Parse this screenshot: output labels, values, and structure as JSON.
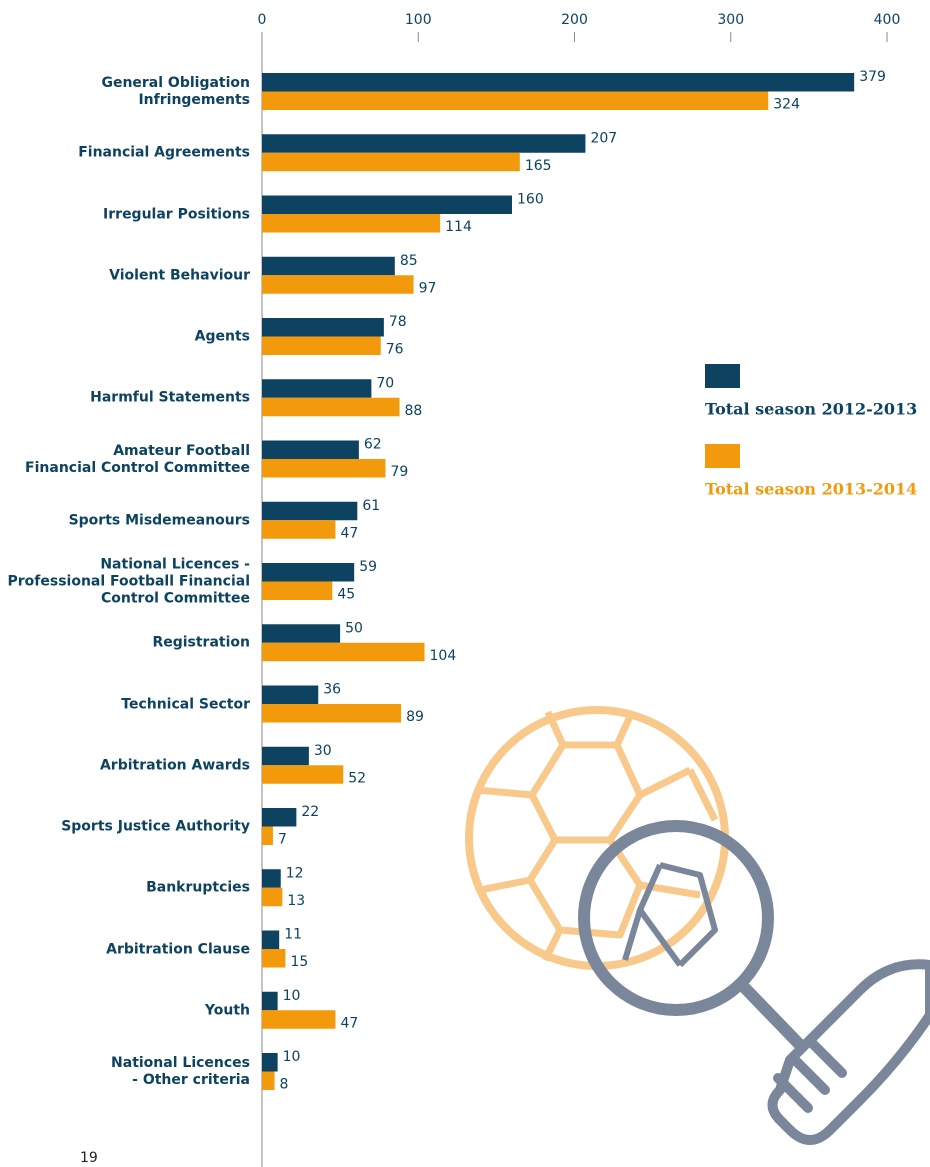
{
  "chart_data": {
    "type": "bar",
    "orientation": "horizontal",
    "categories": [
      "General Obligation\nInfringements",
      "Financial Agreements",
      "Irregular Positions",
      "Violent Behaviour",
      "Agents",
      "Harmful Statements",
      "Amateur Football\nFinancial Control Committee",
      "Sports Misdemeanours",
      "National Licences -\nProfessional Football Financial\nControl Committee",
      "Registration",
      "Technical Sector",
      "Arbitration Awards",
      "Sports Justice Authority",
      "Bankruptcies",
      "Arbitration Clause",
      "Youth",
      "National Licences\n- Other criteria"
    ],
    "series": [
      {
        "name": "Total season 2012-2013",
        "color": "#0d4360",
        "values": [
          379,
          207,
          160,
          85,
          78,
          70,
          62,
          61,
          59,
          50,
          36,
          30,
          22,
          12,
          11,
          10,
          10
        ]
      },
      {
        "name": "Total season 2013-2014",
        "color": "#f29a0b",
        "values": [
          324,
          165,
          114,
          97,
          76,
          88,
          79,
          47,
          45,
          104,
          89,
          52,
          7,
          13,
          15,
          47,
          8
        ]
      }
    ],
    "xlim": [
      0,
      400
    ],
    "xticks": [
      0,
      100,
      200,
      300,
      400
    ],
    "grid": false,
    "legend": "right"
  },
  "page_number": "19"
}
